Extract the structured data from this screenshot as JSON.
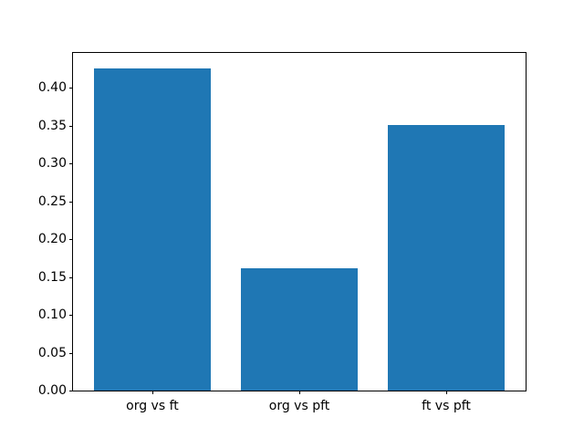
{
  "chart_data": {
    "type": "bar",
    "title": "",
    "xlabel": "",
    "ylabel": "",
    "categories": [
      "org vs ft",
      "org vs pft",
      "ft vs pft"
    ],
    "values": [
      0.425,
      0.161,
      0.351
    ],
    "ylim": [
      0,
      0.446
    ],
    "yticks": [
      0.0,
      0.05,
      0.1,
      0.15,
      0.2,
      0.25,
      0.3,
      0.35,
      0.4
    ],
    "ytick_labels": [
      "0.00",
      "0.05",
      "0.10",
      "0.15",
      "0.20",
      "0.25",
      "0.30",
      "0.35",
      "0.40"
    ],
    "bar_color": "#1f77b4",
    "bar_width_fraction": 0.8,
    "grid": false,
    "legend": null,
    "background_color": "#ffffff",
    "spine_color": "#000000"
  }
}
